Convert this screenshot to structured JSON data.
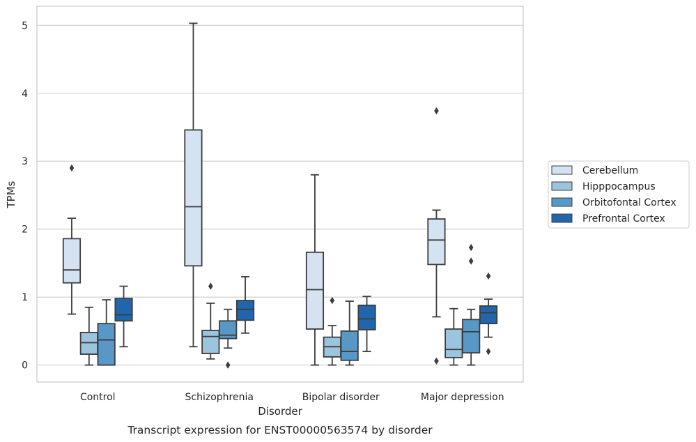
{
  "chart_data": {
    "type": "box",
    "xlabel": "Disorder",
    "ylabel": "TPMs",
    "caption": "Transcript expression for ENST00000563574 by disorder",
    "ylim": [
      -0.25,
      5.28
    ],
    "yticks": [
      0,
      1,
      2,
      3,
      4,
      5
    ],
    "grid": "horizontal",
    "legend_position": "right",
    "categories": [
      "Control",
      "Schizophrenia",
      "Bipolar disorder",
      "Major depression"
    ],
    "series": [
      {
        "name": "Cerebellum",
        "color": "#d4e2f2",
        "boxes": [
          {
            "whislo": 0.75,
            "q1": 1.21,
            "med": 1.4,
            "q3": 1.86,
            "whishi": 2.16,
            "fliers": [
              2.9
            ]
          },
          {
            "whislo": 0.27,
            "q1": 1.46,
            "med": 2.33,
            "q3": 3.46,
            "whishi": 5.03,
            "fliers": []
          },
          {
            "whislo": 0.0,
            "q1": 0.53,
            "med": 1.11,
            "q3": 1.66,
            "whishi": 2.8,
            "fliers": []
          },
          {
            "whislo": 0.71,
            "q1": 1.48,
            "med": 1.84,
            "q3": 2.15,
            "whishi": 2.28,
            "fliers": [
              3.74,
              0.06
            ]
          }
        ]
      },
      {
        "name": "Hipppocampus",
        "color": "#9bc4de",
        "boxes": [
          {
            "whislo": 0.0,
            "q1": 0.16,
            "med": 0.33,
            "q3": 0.48,
            "whishi": 0.85,
            "fliers": []
          },
          {
            "whislo": 0.09,
            "q1": 0.17,
            "med": 0.42,
            "q3": 0.51,
            "whishi": 0.91,
            "fliers": [
              1.16
            ]
          },
          {
            "whislo": 0.0,
            "q1": 0.12,
            "med": 0.27,
            "q3": 0.41,
            "whishi": 0.58,
            "fliers": [
              0.95
            ]
          },
          {
            "whislo": 0.0,
            "q1": 0.11,
            "med": 0.23,
            "q3": 0.53,
            "whishi": 0.83,
            "fliers": []
          }
        ]
      },
      {
        "name": "Orbitofontal Cortex",
        "color": "#5898c7",
        "boxes": [
          {
            "whislo": 0.0,
            "q1": 0.0,
            "med": 0.37,
            "q3": 0.61,
            "whishi": 0.96,
            "fliers": []
          },
          {
            "whislo": 0.25,
            "q1": 0.39,
            "med": 0.44,
            "q3": 0.65,
            "whishi": 0.82,
            "fliers": [
              0.0
            ]
          },
          {
            "whislo": 0.0,
            "q1": 0.07,
            "med": 0.2,
            "q3": 0.5,
            "whishi": 0.94,
            "fliers": []
          },
          {
            "whislo": 0.0,
            "q1": 0.18,
            "med": 0.49,
            "q3": 0.67,
            "whishi": 0.82,
            "fliers": [
              1.73,
              1.53
            ]
          }
        ]
      },
      {
        "name": "Prefrontal Cortex",
        "color": "#2166ac",
        "boxes": [
          {
            "whislo": 0.27,
            "q1": 0.65,
            "med": 0.74,
            "q3": 0.98,
            "whishi": 1.16,
            "fliers": []
          },
          {
            "whislo": 0.47,
            "q1": 0.66,
            "med": 0.82,
            "q3": 0.95,
            "whishi": 1.3,
            "fliers": []
          },
          {
            "whislo": 0.2,
            "q1": 0.52,
            "med": 0.68,
            "q3": 0.88,
            "whishi": 1.01,
            "fliers": []
          },
          {
            "whislo": 0.41,
            "q1": 0.61,
            "med": 0.77,
            "q3": 0.87,
            "whishi": 0.97,
            "fliers": [
              1.31,
              0.2
            ]
          }
        ]
      }
    ]
  }
}
